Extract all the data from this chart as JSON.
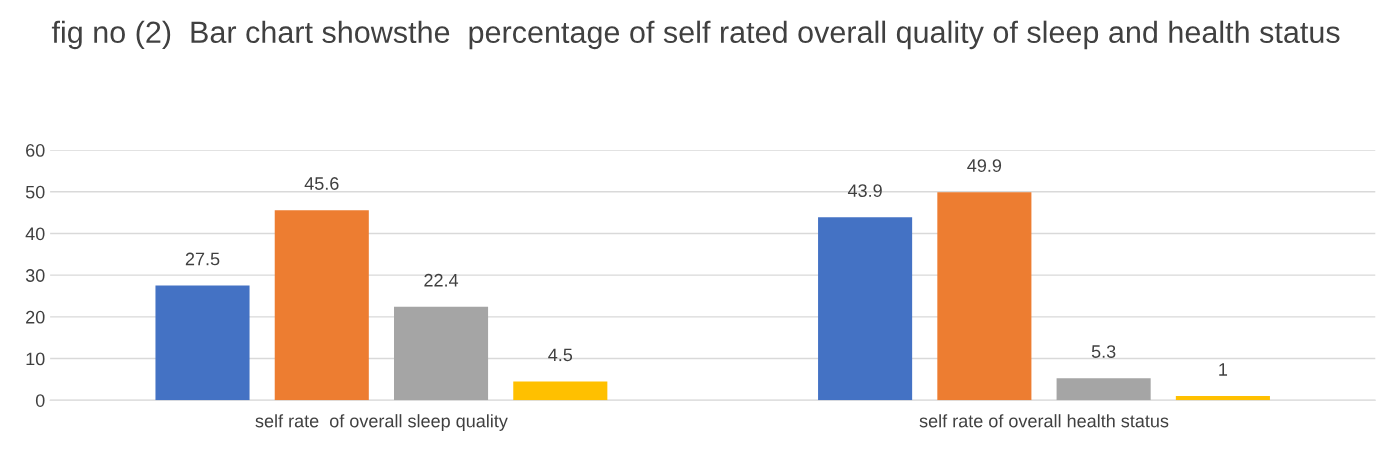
{
  "chart_data": {
    "type": "bar",
    "title": "fig no (2)  Bar chart showsthe  percentage of self rated overall quality of sleep and health status",
    "categories": [
      "self rate  of overall sleep quality",
      "self rate of overall health status"
    ],
    "series": [
      {
        "color": "#4472c4",
        "values": [
          27.5,
          43.9
        ]
      },
      {
        "color": "#ed7d31",
        "values": [
          45.6,
          49.9
        ]
      },
      {
        "color": "#a5a5a5",
        "values": [
          22.4,
          5.3
        ]
      },
      {
        "color": "#ffc000",
        "values": [
          4.5,
          1
        ]
      }
    ],
    "ylim": [
      0,
      60
    ],
    "yticks": [
      0,
      10,
      20,
      30,
      40,
      50,
      60
    ],
    "grid": "y",
    "data_labels": true
  }
}
